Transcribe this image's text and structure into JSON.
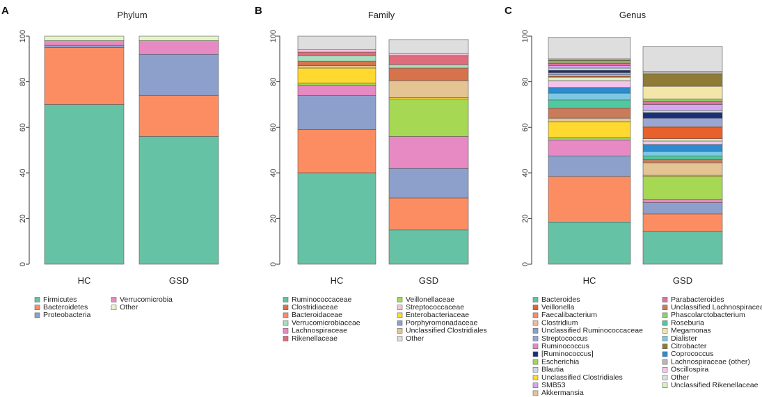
{
  "panels": [
    {
      "letter": "A",
      "title": "Phylum",
      "chart_data": {
        "type": "bar",
        "stacked": true,
        "title": "Phylum",
        "categories": [
          "HC",
          "GSD"
        ],
        "ylim": [
          0,
          100
        ],
        "yticks": [
          0,
          20,
          40,
          60,
          80,
          100
        ],
        "grid": false,
        "legend_position": "bottom",
        "series": [
          {
            "name": "Firmicutes",
            "color": "#66c2a5",
            "values": [
              70,
              56
            ]
          },
          {
            "name": "Bacteroidetes",
            "color": "#fc8d62",
            "values": [
              25,
              18
            ]
          },
          {
            "name": "Proteobacteria",
            "color": "#8da0cb",
            "values": [
              1,
              18
            ]
          },
          {
            "name": "Verrucomicrobia",
            "color": "#e78ac3",
            "values": [
              2,
              6
            ]
          },
          {
            "name": "Other",
            "color": "#e6f5c9",
            "values": [
              2,
              2
            ]
          }
        ]
      },
      "legend_order": [
        0,
        1,
        2,
        3,
        4
      ]
    },
    {
      "letter": "B",
      "title": "Family",
      "chart_data": {
        "type": "bar",
        "stacked": true,
        "title": "Family",
        "categories": [
          "HC",
          "GSD"
        ],
        "ylim": [
          0,
          100
        ],
        "yticks": [
          0,
          20,
          40,
          60,
          80,
          100
        ],
        "grid": false,
        "legend_position": "bottom",
        "series": [
          {
            "name": "Ruminococcaceae",
            "color": "#66c2a5",
            "values": [
              40,
              15
            ]
          },
          {
            "name": "Bacteroidaceae",
            "color": "#fc8d62",
            "values": [
              19,
              14
            ]
          },
          {
            "name": "Porphyromonadaceae",
            "color": "#8da0cb",
            "values": [
              15,
              13
            ]
          },
          {
            "name": "Lachnospiraceae",
            "color": "#e78ac3",
            "values": [
              4.5,
              14
            ]
          },
          {
            "name": "Veillonellaceae",
            "color": "#a6d854",
            "values": [
              1,
              16.5
            ]
          },
          {
            "name": "Enterobacteriaceae",
            "color": "#ffd92f",
            "values": [
              6.5,
              0.5
            ]
          },
          {
            "name": "Unclassified Clostridiales",
            "color": "#e5c494",
            "values": [
              1,
              7.5
            ]
          },
          {
            "name": "Clostridiaceae",
            "color": "#d6734a",
            "values": [
              2,
              5.5
            ]
          },
          {
            "name": "Verrucomicrobiaceae",
            "color": "#a9dfbf",
            "values": [
              2.5,
              1.5
            ]
          },
          {
            "name": "Rikenellaceae",
            "color": "#df6b7b",
            "values": [
              1.5,
              4
            ]
          },
          {
            "name": "Streptococcaceae",
            "color": "#f3c6dd",
            "values": [
              1,
              1
            ]
          },
          {
            "name": "Other",
            "color": "#dedede",
            "values": [
              6,
              6
            ]
          }
        ]
      },
      "legend_order": [
        0,
        7,
        1,
        8,
        3,
        9,
        4,
        10,
        5,
        2,
        6,
        11
      ]
    },
    {
      "letter": "C",
      "title": "Genus",
      "chart_data": {
        "type": "bar",
        "stacked": true,
        "title": "Genus",
        "categories": [
          "HC",
          "GSD"
        ],
        "ylim": [
          0,
          100
        ],
        "yticks": [
          0,
          20,
          40,
          60,
          80,
          100
        ],
        "grid": false,
        "legend_position": "bottom",
        "series": [
          {
            "name": "Bacteroides",
            "color": "#66c2a5",
            "values": [
              18.5,
              14.5
            ]
          },
          {
            "name": "Faecalibacterium",
            "color": "#fc8d62",
            "values": [
              20,
              7.5
            ]
          },
          {
            "name": "Unclassified Ruminococcaceae",
            "color": "#8da0cb",
            "values": [
              9,
              5
            ]
          },
          {
            "name": "Ruminococcus",
            "color": "#e78ac3",
            "values": [
              7,
              1.5
            ]
          },
          {
            "name": "Escherichia",
            "color": "#a6d854",
            "values": [
              1,
              10
            ]
          },
          {
            "name": "Unclassified Clostridiales",
            "color": "#ffd92f",
            "values": [
              7,
              0.5
            ]
          },
          {
            "name": "Akkermansia",
            "color": "#e5c494",
            "values": [
              1.5,
              5.5
            ]
          },
          {
            "name": "Unclassified Lachnospiraceae",
            "color": "#c97b5a",
            "values": [
              4.5,
              1.5
            ]
          },
          {
            "name": "Roseburia",
            "color": "#4fc9a0",
            "values": [
              3.5,
              1.5
            ]
          },
          {
            "name": "Dialister",
            "color": "#7ec8e3",
            "values": [
              3,
              2
            ]
          },
          {
            "name": "Coprococcus",
            "color": "#2b8ccf",
            "values": [
              2.5,
              3
            ]
          },
          {
            "name": "Oscillospira",
            "color": "#f5c3ee",
            "values": [
              3,
              1.5
            ]
          },
          {
            "name": "Unclassified Rikenellaceae",
            "color": "#d9f0c0",
            "values": [
              1.5,
              1
            ]
          },
          {
            "name": "Veillonella",
            "color": "#e8602c",
            "values": [
              0.5,
              5
            ]
          },
          {
            "name": "Clostridium",
            "color": "#f4b9a0",
            "values": [
              0.5,
              0.5
            ]
          },
          {
            "name": "Streptococcus",
            "color": "#9aa6d6",
            "values": [
              1,
              3.5
            ]
          },
          {
            "name": "[Ruminococcus]",
            "color": "#1a2f7a",
            "values": [
              1,
              2.5
            ]
          },
          {
            "name": "Blautia",
            "color": "#c8d9e8",
            "values": [
              1,
              1
            ]
          },
          {
            "name": "SMB53",
            "color": "#d7a6f0",
            "values": [
              1,
              2.5
            ]
          },
          {
            "name": "Parabacteroides",
            "color": "#e16fa0",
            "values": [
              1,
              1.5
            ]
          },
          {
            "name": "Phascolarctobacterium",
            "color": "#8fd16a",
            "values": [
              0.5,
              1
            ]
          },
          {
            "name": "Megamonas",
            "color": "#f3e6a8",
            "values": [
              0.5,
              5.5
            ]
          },
          {
            "name": "Citrobacter",
            "color": "#8f7a36",
            "values": [
              0.5,
              5.5
            ]
          },
          {
            "name": "Lachnospiraceae (other)",
            "color": "#b8b8b8",
            "values": [
              0.5,
              1
            ]
          },
          {
            "name": "Other",
            "color": "#dedede",
            "values": [
              9.5,
              11
            ]
          }
        ]
      },
      "legend_order": [
        0,
        13,
        1,
        14,
        2,
        15,
        3,
        16,
        4,
        17,
        5,
        18,
        6,
        19,
        7,
        20,
        8,
        21,
        9,
        22,
        10,
        23,
        11,
        24,
        12
      ]
    }
  ]
}
